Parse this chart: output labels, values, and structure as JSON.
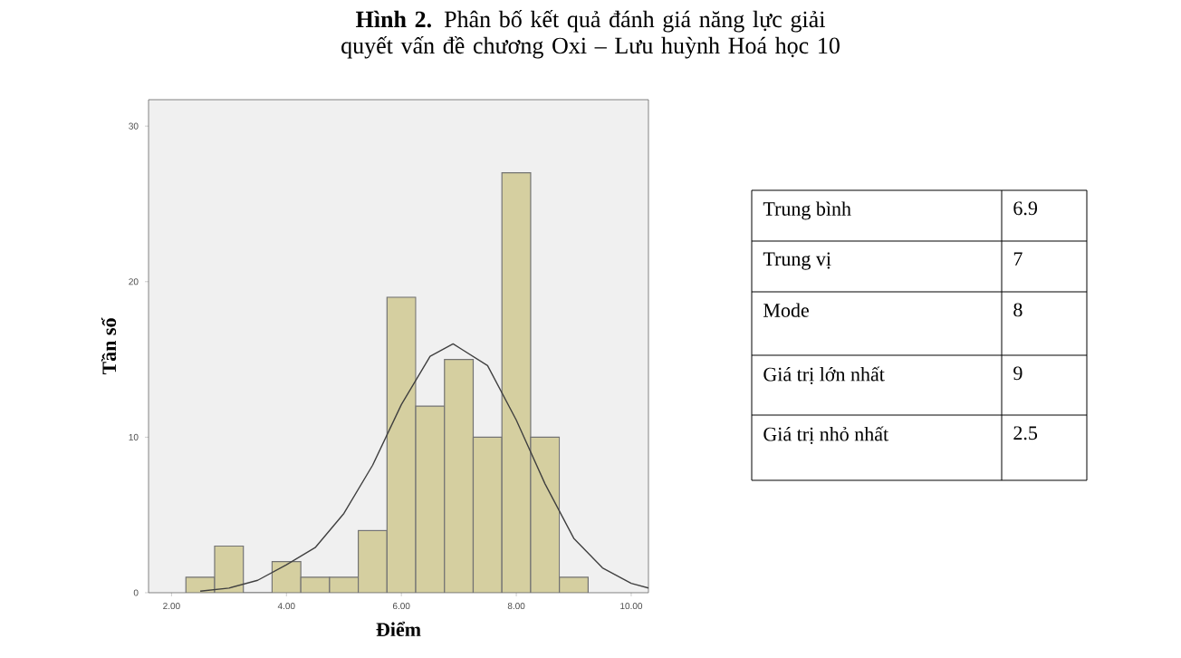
{
  "chart_data": [
    {
      "type": "histogram",
      "title": "**Hình 2.** Phân bố kết quả đánh giá năng lực giải quyết vấn đề chương Oxi – Lưu huỳnh Hoá học 10",
      "xlabel": "Điểm",
      "ylabel": "Tần số",
      "bins": [
        2.25,
        2.75,
        3.25,
        3.75,
        4.25,
        4.75,
        5.25,
        5.75,
        6.25,
        6.75,
        7.25,
        7.75,
        8.25,
        8.75,
        9.25
      ],
      "values": [
        1,
        3,
        0,
        2,
        1,
        1,
        4,
        19,
        12,
        15,
        10,
        27,
        10,
        1
      ],
      "color": "#d5cfa0",
      "series": [
        {
          "type": "line",
          "color": "#404040",
          "x": [
            2.5,
            3,
            3.5,
            4,
            4.5,
            5,
            5.5,
            6,
            6.5,
            6.9,
            7.5,
            8,
            8.5,
            9,
            9.5,
            10,
            10.3
          ],
          "values": [
            0.1,
            0.3,
            0.8,
            1.8,
            2.9,
            5.1,
            8.2,
            12.1,
            15.2,
            16,
            14.6,
            11.1,
            7,
            3.5,
            1.6,
            0.6,
            0.3
          ]
        }
      ],
      "xlim": [
        1.6,
        10.3
      ],
      "ylim": [
        0,
        31.7
      ],
      "xticks": [
        {
          "value": 2,
          "label": "2.00"
        },
        {
          "value": 4,
          "label": "4.00"
        },
        {
          "value": 6,
          "label": "6.00"
        },
        {
          "value": 8,
          "label": "8.00"
        },
        {
          "value": 10,
          "label": "10.00"
        }
      ],
      "yticks": [
        0,
        10,
        20,
        30
      ]
    },
    {
      "type": "other",
      "categories": [
        "Trung bình",
        "Trung vị",
        "Mode",
        "Giá trị lớn nhất",
        "Giá trị nhỏ nhất"
      ],
      "values": [
        6.9,
        7,
        8,
        9,
        2.5
      ],
      "data_labels": true
    }
  ]
}
